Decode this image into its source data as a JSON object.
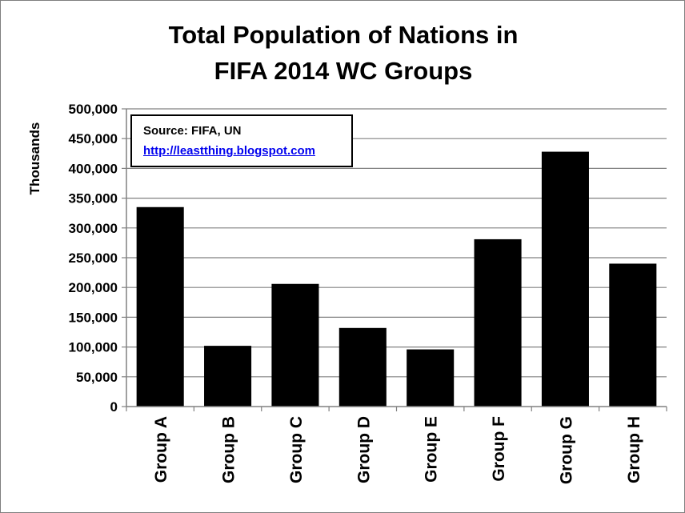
{
  "chart_data": {
    "type": "bar",
    "title_lines": [
      "Total Population of Nations in",
      "FIFA 2014 WC Groups"
    ],
    "ylabel": "Thousands",
    "xlabel": "",
    "categories": [
      "Group A",
      "Group B",
      "Group C",
      "Group D",
      "Group E",
      "Group F",
      "Group G",
      "Group H"
    ],
    "values": [
      335000,
      102000,
      206000,
      132000,
      96000,
      281000,
      428000,
      240000
    ],
    "ylim": [
      0,
      500000
    ],
    "yticks": [
      "0",
      "50,000",
      "100,000",
      "150,000",
      "200,000",
      "250,000",
      "300,000",
      "350,000",
      "400,000",
      "450,000",
      "500,000"
    ],
    "ytick_values": [
      0,
      50000,
      100000,
      150000,
      200000,
      250000,
      300000,
      350000,
      400000,
      450000,
      500000
    ],
    "grid": true,
    "legend": "none",
    "bar_color": "#000000",
    "grid_color": "#808080"
  },
  "annotation": {
    "source": "Source: FIFA, UN",
    "link": "http://leastthing.blogspot.com"
  }
}
